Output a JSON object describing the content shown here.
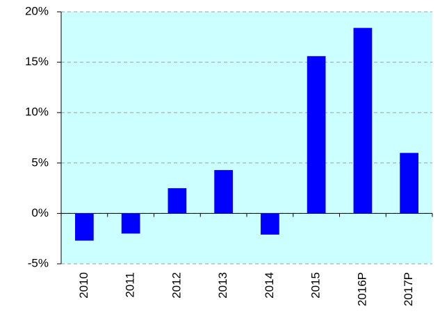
{
  "chart_data": {
    "type": "bar",
    "categories": [
      "2010",
      "2011",
      "2012",
      "2013",
      "2014",
      "2015",
      "2016P",
      "2017P"
    ],
    "values": [
      -2.7,
      -2.0,
      2.5,
      4.3,
      -2.1,
      15.6,
      18.4,
      6.0
    ],
    "color": "#0000ff",
    "plot_background": "#ccffff",
    "ylim": [
      -5,
      20
    ],
    "yticks": [
      {
        "value": -5,
        "label": "-5%"
      },
      {
        "value": 0,
        "label": "0%"
      },
      {
        "value": 5,
        "label": "5%"
      },
      {
        "value": 10,
        "label": "10%"
      },
      {
        "value": 15,
        "label": "15%"
      },
      {
        "value": 20,
        "label": "20%"
      }
    ],
    "grid": true
  }
}
